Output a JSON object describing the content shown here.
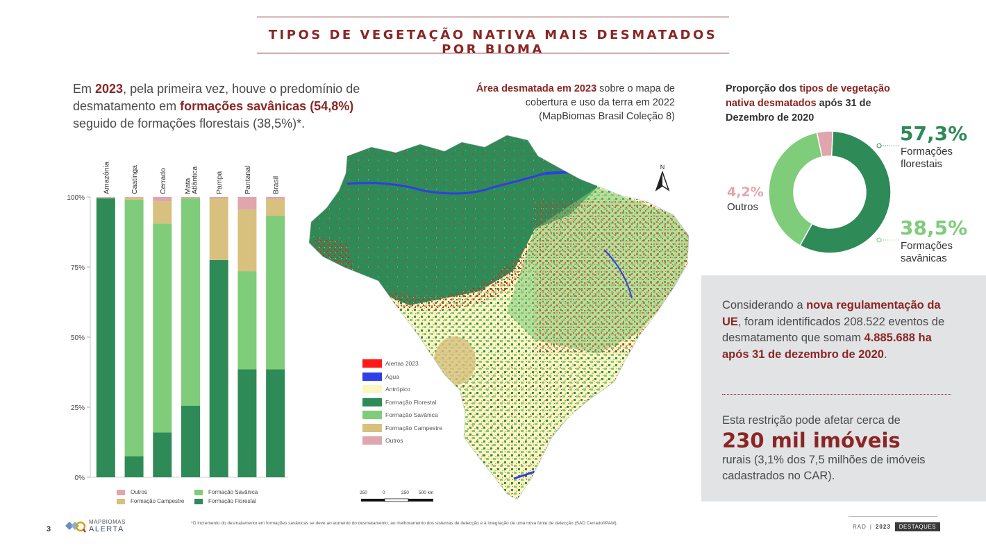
{
  "title": "TIPOS DE VEGETAÇÃO NATIVA MAIS DESMATADOS POR BIOMA",
  "intro": {
    "p_1": "Em ",
    "year": "2023",
    "p_2": ", pela primeira vez, houve o predomínio de desmatamento em ",
    "highlight": "formações savânicas (54,8%)",
    "p_3": " seguido de formações florestais (38,5%)*."
  },
  "chart_data": {
    "type": "bar",
    "stacked": true,
    "categories": [
      "Amazônia",
      "Caatinga",
      "Cerrado",
      "Mata Atlântica",
      "Pampa",
      "Pantanal",
      "Brasil"
    ],
    "series": [
      {
        "name": "Formação Florestal",
        "color": "#2e8b57",
        "values": [
          99.5,
          7.5,
          16,
          25.5,
          77.5,
          38.5,
          38.5
        ]
      },
      {
        "name": "Formação Savânica",
        "color": "#7fcc7a",
        "values": [
          0.2,
          91.5,
          74.5,
          74,
          0,
          35,
          54.8
        ]
      },
      {
        "name": "Formação Campestre",
        "color": "#d8c07e",
        "values": [
          0.1,
          0.8,
          8,
          0.2,
          22,
          22,
          6
        ]
      },
      {
        "name": "Outros",
        "color": "#e0a6ad",
        "values": [
          0.2,
          0.2,
          1.5,
          0.3,
          0.5,
          4.5,
          0.7
        ]
      }
    ],
    "ylim": [
      0,
      100
    ],
    "yticks": [
      "0%",
      "25%",
      "50%",
      "75%",
      "100%"
    ],
    "legend_order": [
      "Outros",
      "Formação Savânica",
      "Formação Campestre",
      "Formação Florestal"
    ],
    "legend_position": "bottom"
  },
  "map": {
    "caption_bold": "Área desmatada em 2023",
    "caption_rest": " sobre o mapa de cobertura e uso da terra em 2022 (MapBiomas Brasil Coleção 8)",
    "north_label": "N",
    "legend": [
      {
        "label": "Alertas 2023",
        "color": "#ff1a1a"
      },
      {
        "label": "Água",
        "color": "#2f3ee6"
      },
      {
        "label": "Antrópico",
        "color": "#fbf7c2"
      },
      {
        "label": "Formação Florestal",
        "color": "#2e8b57"
      },
      {
        "label": "Formação Savânica",
        "color": "#7fcc7a"
      },
      {
        "label": "Formação Campestre",
        "color": "#d8c07e"
      },
      {
        "label": "Outros",
        "color": "#e0a6ad"
      }
    ],
    "scale_labels": [
      "250",
      "0",
      "250",
      "500 km"
    ]
  },
  "donut": {
    "caption_1": "Proporção dos ",
    "caption_hl": "tipos de vegetação nativa desmatados",
    "caption_2": " após 31 de Dezembro de 2020",
    "slices": [
      {
        "name": "Formações florestais",
        "pct_label": "57,3%",
        "value": 57.3,
        "color": "#2e8b57"
      },
      {
        "name": "Formações savânicas",
        "pct_label": "38,5%",
        "value": 38.5,
        "color": "#7fcc7a"
      },
      {
        "name": "Outros",
        "pct_label": "4,2%",
        "value": 4.2,
        "color": "#e0a6ad"
      }
    ],
    "label_florestal_1": "Formações",
    "label_florestal_2": "florestais",
    "label_savanica_1": "Formações",
    "label_savanica_2": "savânicas",
    "label_outros": "Outros"
  },
  "info": {
    "p1_a": "Considerando a ",
    "p1_b": "nova regulamentação da UE",
    "p1_c": ", foram identificados 208.522 eventos de desmatamento que somam ",
    "p1_d": "4.885.688 ha após 31 de dezembro de 2020",
    "p1_e": ".",
    "p2_a": "Esta restrição pode afetar cerca de",
    "p2_big": "230 mil imóveis",
    "p2_b": "rurais (3,1% dos 7,5 milhões de imóveis cadastrados no CAR)."
  },
  "footer": {
    "page_number": "3",
    "logo_line1": "MAPBIOMAS",
    "logo_line2": "ALERTA",
    "footnote": "*O incremento do desmatamento em formações savânicas se deve ao aumento do desmatamento, ao melhoramento dos sistemas de detecção e à integração de uma nova fonte de detecção (SAD Cerrado/IPAM).",
    "rad": "RAD",
    "sep": "|",
    "year": "2023",
    "tag": "DESTAQUES"
  }
}
